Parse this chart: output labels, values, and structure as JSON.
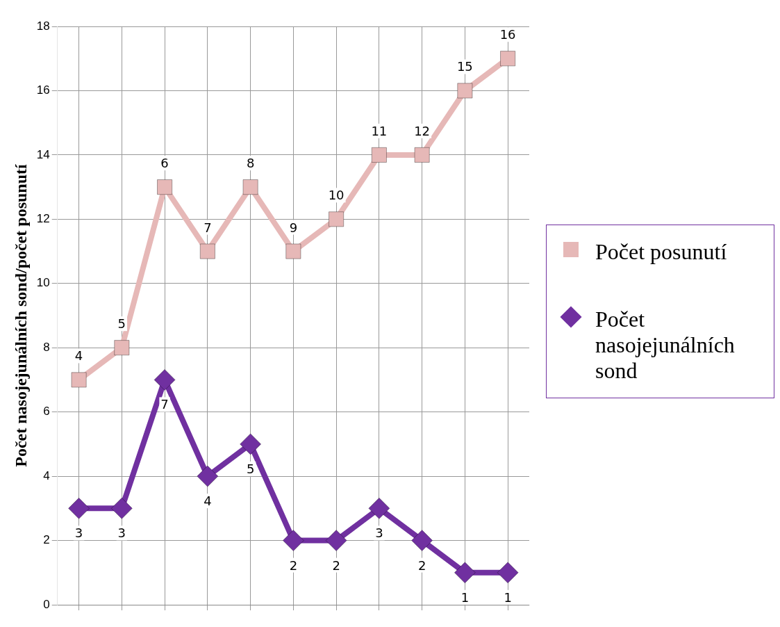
{
  "chart_data": {
    "type": "line",
    "ylabel": "Počet nasojejunálních sond/počet posunutí",
    "categories": [
      null,
      null,
      null,
      null,
      null,
      null,
      null,
      null,
      null,
      null,
      null
    ],
    "series": [
      {
        "name": "Počet posunutí",
        "color": "#e6b8b7",
        "marker": "square",
        "values": [
          7,
          8,
          13,
          11,
          13,
          11,
          12,
          14,
          14,
          16,
          17
        ]
      },
      {
        "name": "Počet nasojejunálních sond",
        "color": "#7030a0",
        "marker": "diamond",
        "values": [
          3,
          3,
          7,
          4,
          5,
          2,
          2,
          3,
          2,
          1,
          1
        ],
        "value_labels": [
          "3",
          "3",
          "7",
          "4",
          "5",
          "2",
          "2",
          "3",
          "2",
          "1",
          "1"
        ]
      }
    ],
    "annotations": [
      {
        "text": "4",
        "y": 7
      },
      {
        "text": "5",
        "y": 8
      },
      {
        "text": "6",
        "y": 13
      },
      {
        "text": "7",
        "y": 11
      },
      {
        "text": "8",
        "y": 13
      },
      {
        "text": "9",
        "y": 11
      },
      {
        "text": "10",
        "y": 12
      },
      {
        "text": "11",
        "y": 14
      },
      {
        "text": "12",
        "y": 14
      },
      {
        "text": "15",
        "y": 16
      },
      {
        "text": "16",
        "y": 17
      }
    ],
    "ylim": [
      0,
      18
    ],
    "yticks": [
      0,
      2,
      4,
      6,
      8,
      10,
      12,
      14,
      16,
      18
    ],
    "grid": true,
    "legend": "right"
  }
}
